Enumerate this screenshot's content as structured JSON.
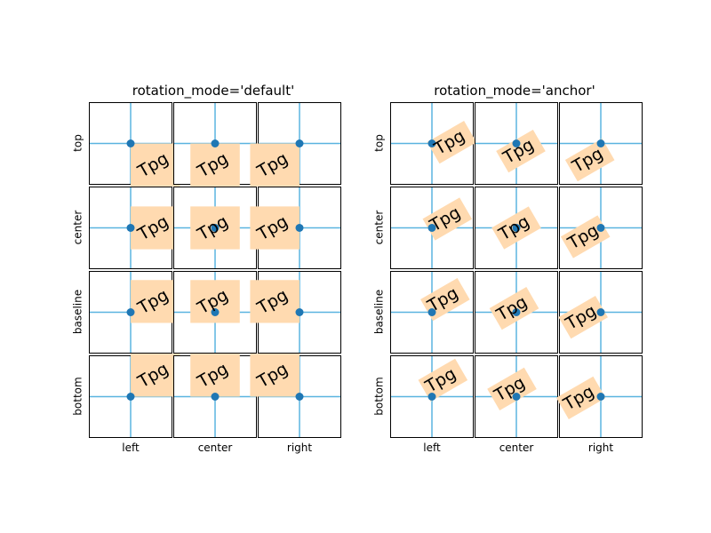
{
  "panels": [
    {
      "id": "default",
      "title": "rotation_mode='default'"
    },
    {
      "id": "anchor",
      "title": "rotation_mode='anchor'"
    }
  ],
  "rows": [
    "top",
    "center",
    "baseline",
    "bottom"
  ],
  "columns": [
    "left",
    "center",
    "right"
  ],
  "sample_text": "Tpg",
  "rotation_degrees": 30,
  "colors": {
    "crosshair": "#5ab4e0",
    "anchor_point": "#1f77b4",
    "text_background": "#ffdab0"
  }
}
